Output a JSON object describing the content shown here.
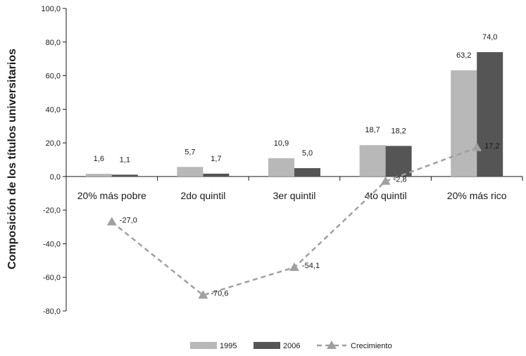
{
  "chart_data": {
    "type": "bar",
    "ylabel": "Composición de los títulos universitarios",
    "ylim": [
      -80,
      100
    ],
    "yticks": [
      "100,0",
      "80,0",
      "60,0",
      "40,0",
      "20,0",
      "0,0",
      "-20,0",
      "-40,0",
      "-60,0",
      "-80,0"
    ],
    "categories": [
      "20% más pobre",
      "2do quintil",
      "3er quintil",
      "4to quintil",
      "20% más rico"
    ],
    "series": [
      {
        "name": "1995",
        "kind": "bar",
        "color": "#b8b8b8",
        "values": [
          1.6,
          5.7,
          10.9,
          18.7,
          63.2
        ],
        "labels": [
          "1,6",
          "5,7",
          "10,9",
          "18,7",
          "63,2"
        ]
      },
      {
        "name": "2006",
        "kind": "bar",
        "color": "#555555",
        "values": [
          1.1,
          1.7,
          5.0,
          18.2,
          74.0
        ],
        "labels": [
          "1,1",
          "1,7",
          "5,0",
          "18,2",
          "74,0"
        ]
      },
      {
        "name": "Crecimiento",
        "kind": "line",
        "style": "dashed",
        "marker": "triangle",
        "color": "#a0a0a0",
        "values": [
          -27.0,
          -70.6,
          -54.1,
          -2.8,
          17.2
        ],
        "labels": [
          "-27,0",
          "-70,6",
          "-54,1",
          "-2,8",
          "17,2"
        ]
      }
    ],
    "grid": false,
    "legend": "bottom"
  }
}
